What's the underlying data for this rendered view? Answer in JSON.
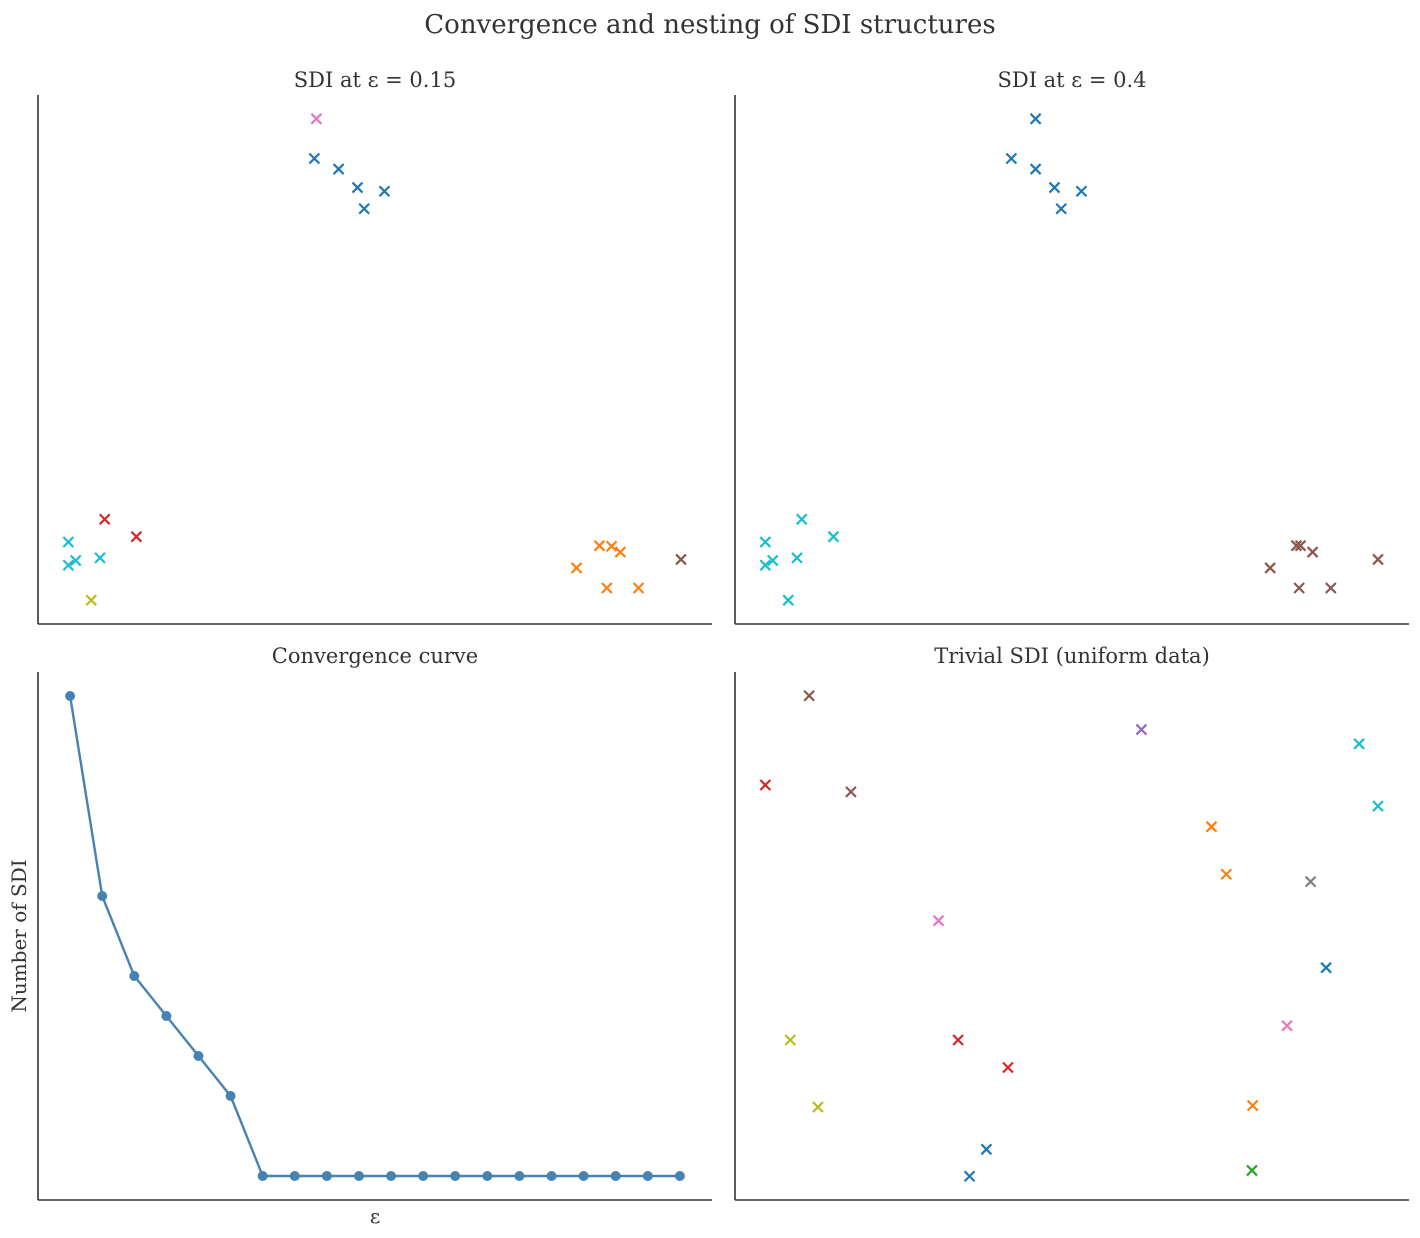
{
  "figure": {
    "suptitle": "Convergence and nesting of SDI structures"
  },
  "colors": {
    "tab_blue": "#1f77b4",
    "tab_orange": "#ff7f0e",
    "tab_green": "#2ca02c",
    "tab_red": "#d62728",
    "tab_purple": "#9467bd",
    "tab_brown": "#8c564b",
    "tab_pink": "#e377c2",
    "tab_gray": "#7f7f7f",
    "tab_olive": "#bcbd22",
    "tab_cyan": "#17becf",
    "curve": "#4682b4",
    "axis": "#333333"
  },
  "chart_data": [
    {
      "type": "scatter",
      "title": "SDI at ε = 0.15",
      "xlabel": "",
      "ylabel": "",
      "xlim": [
        0,
        100
      ],
      "ylim": [
        0,
        100
      ],
      "marker": "x",
      "points": [
        {
          "x": 41.3,
          "y": 95.5,
          "color": "#e377c2"
        },
        {
          "x": 41.0,
          "y": 88.0,
          "color": "#1f77b4"
        },
        {
          "x": 44.6,
          "y": 86.0,
          "color": "#1f77b4"
        },
        {
          "x": 47.4,
          "y": 82.5,
          "color": "#1f77b4"
        },
        {
          "x": 48.4,
          "y": 78.5,
          "color": "#1f77b4"
        },
        {
          "x": 51.4,
          "y": 81.8,
          "color": "#1f77b4"
        },
        {
          "x": 9.9,
          "y": 19.8,
          "color": "#d62728"
        },
        {
          "x": 14.6,
          "y": 16.5,
          "color": "#d62728"
        },
        {
          "x": 4.5,
          "y": 15.5,
          "color": "#17becf"
        },
        {
          "x": 5.6,
          "y": 12.0,
          "color": "#17becf"
        },
        {
          "x": 4.5,
          "y": 11.1,
          "color": "#17becf"
        },
        {
          "x": 9.2,
          "y": 12.5,
          "color": "#17becf"
        },
        {
          "x": 7.9,
          "y": 4.5,
          "color": "#bcbd22"
        },
        {
          "x": 85.1,
          "y": 14.7,
          "color": "#ff7f0e"
        },
        {
          "x": 83.3,
          "y": 14.8,
          "color": "#ff7f0e"
        },
        {
          "x": 86.4,
          "y": 13.6,
          "color": "#ff7f0e"
        },
        {
          "x": 79.9,
          "y": 10.6,
          "color": "#ff7f0e"
        },
        {
          "x": 84.4,
          "y": 6.8,
          "color": "#ff7f0e"
        },
        {
          "x": 89.1,
          "y": 6.8,
          "color": "#ff7f0e"
        },
        {
          "x": 95.4,
          "y": 12.2,
          "color": "#8c564b"
        }
      ]
    },
    {
      "type": "scatter",
      "title": "SDI at ε = 0.4",
      "xlabel": "",
      "ylabel": "",
      "xlim": [
        0,
        100
      ],
      "ylim": [
        0,
        100
      ],
      "marker": "x",
      "points": [
        {
          "x": 44.6,
          "y": 95.5,
          "color": "#1f77b4"
        },
        {
          "x": 41.0,
          "y": 88.0,
          "color": "#1f77b4"
        },
        {
          "x": 44.6,
          "y": 86.0,
          "color": "#1f77b4"
        },
        {
          "x": 47.4,
          "y": 82.5,
          "color": "#1f77b4"
        },
        {
          "x": 48.4,
          "y": 78.5,
          "color": "#1f77b4"
        },
        {
          "x": 51.4,
          "y": 81.8,
          "color": "#1f77b4"
        },
        {
          "x": 9.9,
          "y": 19.8,
          "color": "#17becf"
        },
        {
          "x": 14.6,
          "y": 16.5,
          "color": "#17becf"
        },
        {
          "x": 4.5,
          "y": 15.5,
          "color": "#17becf"
        },
        {
          "x": 5.6,
          "y": 12.0,
          "color": "#17becf"
        },
        {
          "x": 4.5,
          "y": 11.1,
          "color": "#17becf"
        },
        {
          "x": 9.2,
          "y": 12.5,
          "color": "#17becf"
        },
        {
          "x": 7.9,
          "y": 4.5,
          "color": "#17becf"
        },
        {
          "x": 83.3,
          "y": 14.8,
          "color": "#8c564b"
        },
        {
          "x": 83.9,
          "y": 14.8,
          "color": "#8c564b"
        },
        {
          "x": 85.7,
          "y": 13.6,
          "color": "#8c564b"
        },
        {
          "x": 79.4,
          "y": 10.6,
          "color": "#8c564b"
        },
        {
          "x": 83.7,
          "y": 6.8,
          "color": "#8c564b"
        },
        {
          "x": 88.4,
          "y": 6.8,
          "color": "#8c564b"
        },
        {
          "x": 95.4,
          "y": 12.2,
          "color": "#8c564b"
        }
      ]
    },
    {
      "type": "line",
      "title": "Convergence curve",
      "xlabel": "ε",
      "ylabel": "Number of SDI",
      "xlim": [
        0,
        21
      ],
      "ylim": [
        0,
        13.2
      ],
      "marker": "o",
      "x": [
        1,
        2,
        3,
        4,
        5,
        6,
        7,
        8,
        9,
        10,
        11,
        12,
        13,
        14,
        15,
        16,
        17,
        18,
        19,
        20
      ],
      "series": [
        {
          "values": [
            12.6,
            7.6,
            5.6,
            4.6,
            3.6,
            2.6,
            0.6,
            0.6,
            0.6,
            0.6,
            0.6,
            0.6,
            0.6,
            0.6,
            0.6,
            0.6,
            0.6,
            0.6,
            0.6,
            0.6
          ],
          "color": "#4682b4"
        }
      ]
    },
    {
      "type": "scatter",
      "title": "Trivial SDI (uniform data)",
      "xlabel": "",
      "ylabel": "",
      "xlim": [
        0,
        100
      ],
      "ylim": [
        0,
        100
      ],
      "marker": "x",
      "points": [
        {
          "x": 11.0,
          "y": 95.5,
          "color": "#8c564b"
        },
        {
          "x": 4.5,
          "y": 78.6,
          "color": "#d62728"
        },
        {
          "x": 17.2,
          "y": 77.3,
          "color": "#8c564b"
        },
        {
          "x": 60.3,
          "y": 89.1,
          "color": "#9467bd"
        },
        {
          "x": 92.6,
          "y": 86.4,
          "color": "#17becf"
        },
        {
          "x": 95.4,
          "y": 74.6,
          "color": "#17becf"
        },
        {
          "x": 70.7,
          "y": 70.7,
          "color": "#ff7f0e"
        },
        {
          "x": 72.9,
          "y": 61.7,
          "color": "#ff7f0e"
        },
        {
          "x": 85.4,
          "y": 60.3,
          "color": "#7f7f7f"
        },
        {
          "x": 30.2,
          "y": 52.9,
          "color": "#e377c2"
        },
        {
          "x": 87.7,
          "y": 44.0,
          "color": "#1f77b4"
        },
        {
          "x": 81.9,
          "y": 33.0,
          "color": "#e377c2"
        },
        {
          "x": 8.2,
          "y": 30.3,
          "color": "#bcbd22"
        },
        {
          "x": 33.1,
          "y": 30.3,
          "color": "#d62728"
        },
        {
          "x": 40.5,
          "y": 25.1,
          "color": "#d62728"
        },
        {
          "x": 12.3,
          "y": 17.6,
          "color": "#bcbd22"
        },
        {
          "x": 76.8,
          "y": 17.9,
          "color": "#ff7f0e"
        },
        {
          "x": 37.3,
          "y": 9.6,
          "color": "#1f77b4"
        },
        {
          "x": 34.8,
          "y": 4.5,
          "color": "#1f77b4"
        },
        {
          "x": 76.7,
          "y": 5.6,
          "color": "#2ca02c"
        }
      ]
    }
  ]
}
